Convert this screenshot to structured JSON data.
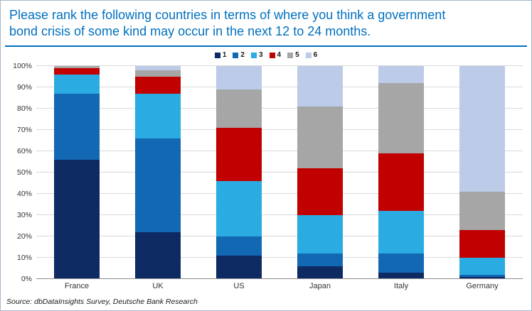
{
  "title": {
    "line1": "Please rank the following countries in terms of where you think a government",
    "line2": "bond crisis of some kind may occur in the next 12 to 24 months."
  },
  "source": "Source: dbDataInsights Survey, Deutsche Bank Research",
  "colors": {
    "title_blue": "#0070c0",
    "grid": "#d9d9d9",
    "axis_line": "#8c8c8c"
  },
  "chart_data": {
    "type": "bar",
    "stacked": true,
    "title": "Please rank the following countries in terms of where you think a government bond crisis of some kind may occur in the next 12 to 24 months.",
    "categories": [
      "France",
      "UK",
      "US",
      "Japan",
      "Italy",
      "Germany"
    ],
    "series": [
      {
        "name": "1",
        "color": "#0e2a63",
        "values": [
          56,
          22,
          11,
          6,
          3,
          1
        ]
      },
      {
        "name": "2",
        "color": "#1268b3",
        "values": [
          31,
          44,
          9,
          6,
          9,
          1
        ]
      },
      {
        "name": "3",
        "color": "#2aace2",
        "values": [
          9,
          21,
          26,
          18,
          20,
          8
        ]
      },
      {
        "name": "4",
        "color": "#c10000",
        "values": [
          3,
          8,
          25,
          22,
          27,
          13
        ]
      },
      {
        "name": "5",
        "color": "#a6a6a6",
        "values": [
          1,
          3,
          18,
          29,
          33,
          18
        ]
      },
      {
        "name": "6",
        "color": "#bccbe8",
        "values": [
          0,
          2,
          11,
          19,
          8,
          59
        ]
      }
    ],
    "ylim": [
      0,
      100
    ],
    "yticks": [
      "0%",
      "10%",
      "20%",
      "30%",
      "40%",
      "50%",
      "60%",
      "70%",
      "80%",
      "90%",
      "100%"
    ],
    "ylabel": "",
    "xlabel": "",
    "grid": true,
    "legend_position": "top-center"
  }
}
